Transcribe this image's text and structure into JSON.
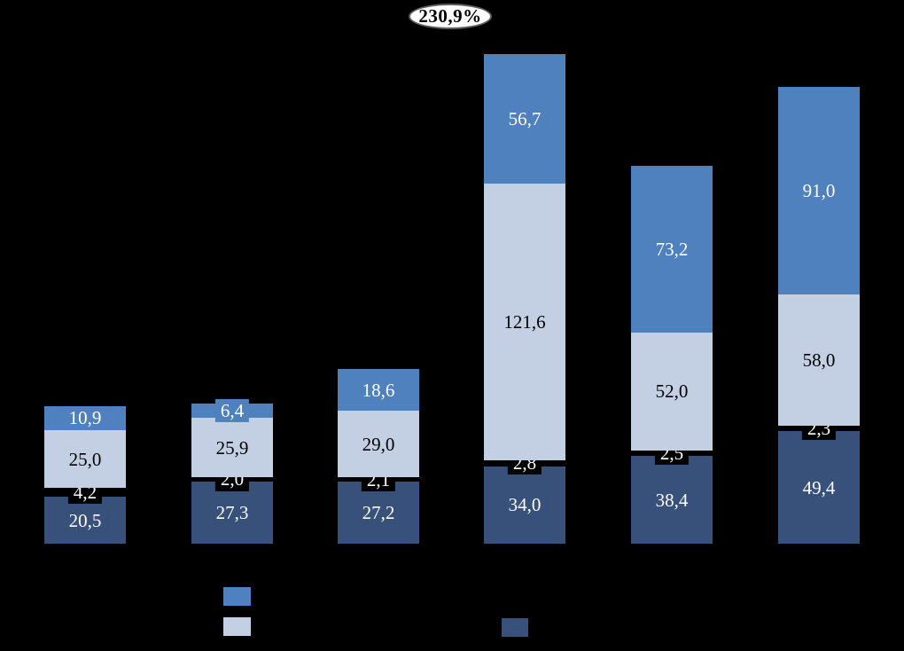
{
  "annotation": {
    "text": "230,9%"
  },
  "colors": {
    "background": "#000000",
    "blue": "#4e81bd",
    "light_blue": "#c3cfe2",
    "dark_blue": "#37517a",
    "black_segment": "#000000",
    "ellipse_fill": "#ffffff",
    "ellipse_border": "#5f5f5f",
    "ellipse_text": "#000000"
  },
  "chart_data": {
    "type": "bar",
    "stacked": true,
    "title": "",
    "xlabel": "",
    "ylabel": "",
    "num_categories": 6,
    "categories": [
      "",
      "",
      "",
      "",
      "",
      ""
    ],
    "value_format": "decimal-comma",
    "series": [
      {
        "name": "dark-blue-bottom",
        "color_key": "dark_blue",
        "values": [
          20.5,
          27.3,
          27.2,
          34.0,
          38.4,
          49.4
        ],
        "labels": [
          "20,5",
          "27,3",
          "27,2",
          "34,0",
          "38,4",
          "49,4"
        ],
        "label_color": "#ffffff"
      },
      {
        "name": "black-thin",
        "color_key": "black_segment",
        "values": [
          4.2,
          2.0,
          2.1,
          2.8,
          2.5,
          2.3
        ],
        "labels": [
          "4,2",
          "2,0",
          "2,1",
          "2,8",
          "2,5",
          "2,3"
        ],
        "label_color": "#ffffff"
      },
      {
        "name": "light-blue-middle",
        "color_key": "light_blue",
        "values": [
          25.0,
          25.9,
          29.0,
          121.6,
          52.0,
          58.0
        ],
        "labels": [
          "25,0",
          "25,9",
          "29,0",
          "121,6",
          "52,0",
          "58,0"
        ],
        "label_color": "#000000"
      },
      {
        "name": "medium-blue-top",
        "color_key": "blue",
        "values": [
          10.9,
          6.4,
          18.6,
          56.7,
          73.2,
          91.0
        ],
        "labels": [
          "10,9",
          "6,4",
          "18,6",
          "56,7",
          "73,2",
          "91,0"
        ],
        "label_color": "#ffffff"
      }
    ],
    "annotations": [
      {
        "text": "230,9%",
        "shape": "ellipse",
        "position": "top-center"
      }
    ],
    "legend": {
      "position": "bottom",
      "labels_visible": false,
      "swatches": [
        {
          "name": "medium-blue-top",
          "color_key": "blue"
        },
        {
          "name": "light-blue-middle",
          "color_key": "light_blue"
        },
        {
          "name": "dark-blue-bottom",
          "color_key": "dark_blue"
        }
      ]
    },
    "grid": false,
    "axes_visible": false
  }
}
